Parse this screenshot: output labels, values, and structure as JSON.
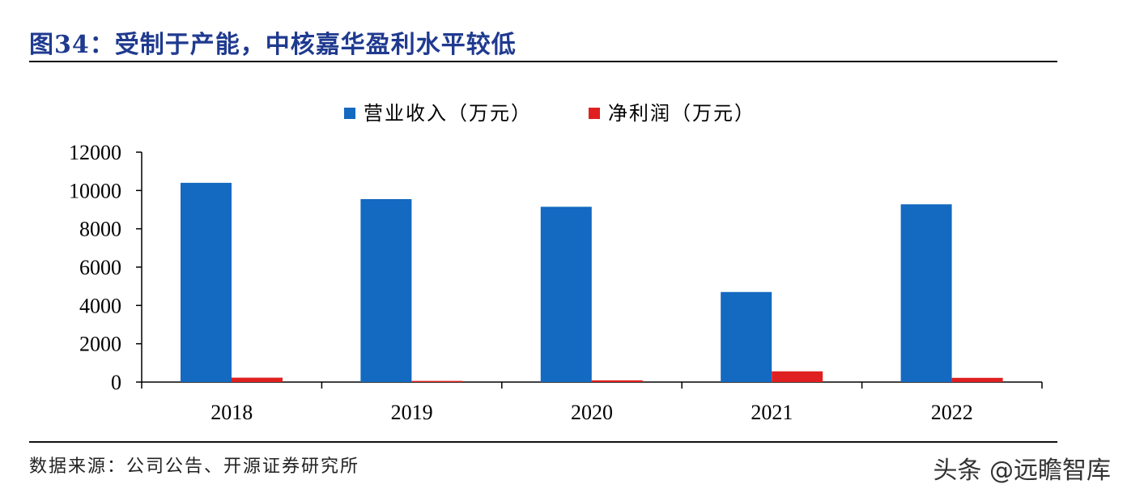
{
  "header": {
    "title": "图34：受制于产能，中核嘉华盈利水平较低"
  },
  "footer": {
    "source": "数据来源：公司公告、开源证券研究所",
    "watermark": "头条 @远瞻智库"
  },
  "chart_data": {
    "type": "bar",
    "categories": [
      "2018",
      "2019",
      "2020",
      "2021",
      "2022"
    ],
    "series": [
      {
        "name": "营业收入（万元）",
        "color": "#1469c0",
        "values": [
          10400,
          9550,
          9150,
          4700,
          9280
        ]
      },
      {
        "name": "净利润（万元）",
        "color": "#e02020",
        "values": [
          230,
          60,
          90,
          560,
          220
        ]
      }
    ],
    "ylim": [
      0,
      12000
    ],
    "yticks": [
      "0",
      "2000",
      "4000",
      "6000",
      "8000",
      "10000",
      "12000"
    ],
    "legend_position": "top-center",
    "grid": false
  }
}
